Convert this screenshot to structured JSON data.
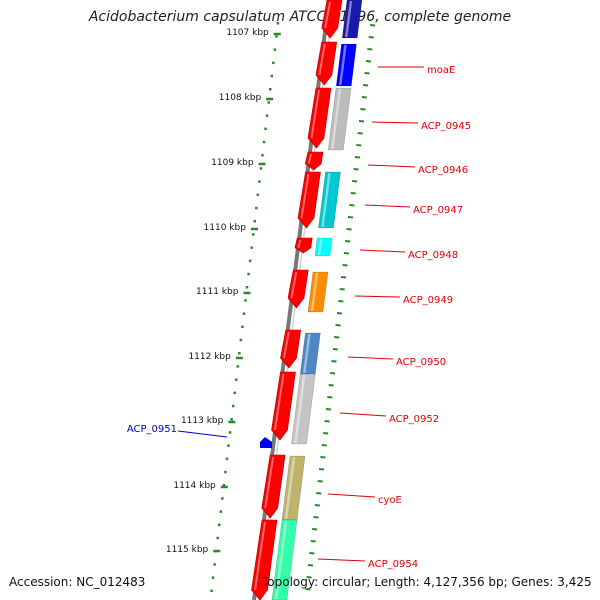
{
  "title": "Acidobacterium capsulatum ATCC 51196, complete genome",
  "footer": {
    "accession": "Accession: NC_012483",
    "stats": "Topology: circular; Length: 4,127,356 bp; Genes: 3,425"
  },
  "colors": {
    "cds_forward": "#ff0000",
    "backbone": "#888888",
    "tick": "#2a8a2a",
    "label_red": "#dd0000",
    "label_blue": "#0000cc"
  },
  "scale_labels": [
    "1107 kbp",
    "1108 kbp",
    "1109 kbp",
    "1110 kbp",
    "1111 kbp",
    "1112 kbp",
    "1113 kbp",
    "1114 kbp",
    "1115 kbp"
  ],
  "genes": [
    {
      "name": "moaE",
      "color": "#ff0000"
    },
    {
      "name": "ACP_0945",
      "color": "#ff0000"
    },
    {
      "name": "ACP_0946",
      "color": "#ff0000"
    },
    {
      "name": "ACP_0947",
      "color": "#ff0000"
    },
    {
      "name": "ACP_0948",
      "color": "#ff0000"
    },
    {
      "name": "ACP_0949",
      "color": "#ff0000"
    },
    {
      "name": "ACP_0950",
      "color": "#ff0000"
    },
    {
      "name": "ACP_0952",
      "color": "#ff0000"
    },
    {
      "name": "cyoE",
      "color": "#ff0000"
    },
    {
      "name": "ACP_0954",
      "color": "#ff0000"
    },
    {
      "name": "ACP_0951",
      "color": "#0000cc"
    }
  ]
}
